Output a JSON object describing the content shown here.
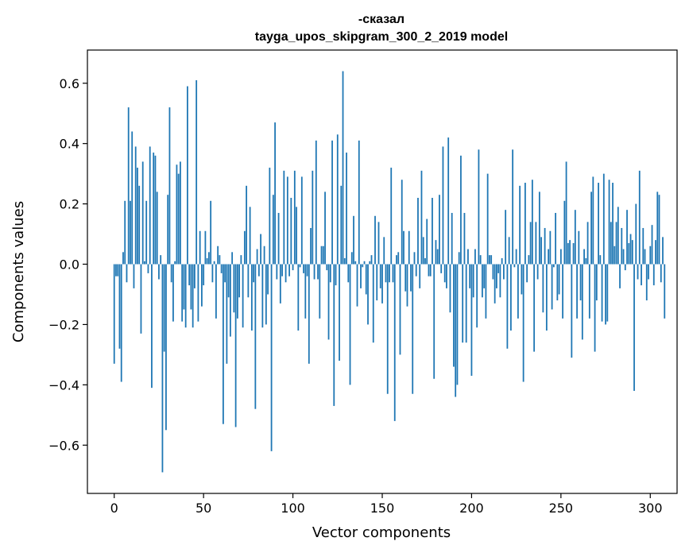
{
  "chart_data": {
    "type": "bar",
    "title": "-сказал",
    "subtitle": "tayga_upos_skipgram_300_2_2019 model",
    "xlabel": "Vector components",
    "ylabel": "Components values",
    "xlim": [
      -15,
      315
    ],
    "ylim": [
      -0.76,
      0.71
    ],
    "xticks": [
      0,
      50,
      100,
      150,
      200,
      250,
      300
    ],
    "yticks": [
      -0.6,
      -0.4,
      -0.2,
      0.0,
      0.2,
      0.4,
      0.6
    ],
    "ytick_labels": [
      "−0.6",
      "−0.4",
      "−0.2",
      "0.0",
      "0.2",
      "0.4",
      "0.6"
    ],
    "bar_color": "#1f77b4",
    "grid": false,
    "values": [
      -0.33,
      -0.04,
      -0.04,
      -0.28,
      -0.39,
      0.04,
      0.21,
      -0.06,
      0.52,
      0.21,
      0.44,
      -0.08,
      0.39,
      0.32,
      0.26,
      -0.23,
      0.34,
      0.01,
      0.21,
      -0.03,
      0.39,
      -0.41,
      0.37,
      0.36,
      0.24,
      -0.05,
      0.03,
      -0.69,
      -0.29,
      -0.55,
      0.23,
      0.52,
      -0.06,
      -0.19,
      0.01,
      0.33,
      0.3,
      0.34,
      -0.19,
      -0.15,
      -0.21,
      0.59,
      -0.07,
      -0.15,
      -0.21,
      -0.08,
      0.61,
      -0.19,
      0.11,
      -0.14,
      -0.07,
      0.11,
      0.02,
      0.04,
      0.21,
      -0.06,
      0.01,
      -0.18,
      0.06,
      0.03,
      -0.03,
      -0.53,
      -0.06,
      -0.33,
      -0.11,
      -0.24,
      0.04,
      -0.16,
      -0.54,
      -0.18,
      -0.11,
      0.03,
      -0.21,
      0.11,
      0.26,
      -0.11,
      0.19,
      -0.22,
      -0.06,
      -0.48,
      0.05,
      -0.04,
      0.1,
      -0.21,
      0.06,
      -0.2,
      -0.1,
      0.32,
      -0.62,
      0.23,
      0.47,
      -0.05,
      0.17,
      -0.13,
      -0.04,
      0.31,
      -0.06,
      0.29,
      -0.04,
      0.22,
      -0.02,
      0.31,
      0.19,
      -0.22,
      -0.01,
      0.29,
      -0.03,
      -0.18,
      -0.04,
      -0.33,
      0.12,
      0.31,
      -0.05,
      0.41,
      -0.05,
      -0.18,
      0.06,
      0.06,
      0.24,
      -0.02,
      -0.25,
      -0.06,
      0.41,
      -0.47,
      -0.07,
      0.43,
      -0.32,
      0.26,
      0.64,
      0.02,
      0.37,
      -0.06,
      -0.4,
      0.04,
      0.16,
      0.01,
      -0.14,
      0.41,
      -0.08,
      -0.01,
      0.01,
      -0.1,
      -0.2,
      0.01,
      0.03,
      -0.26,
      0.16,
      -0.12,
      0.14,
      -0.08,
      -0.13,
      0.09,
      -0.06,
      -0.43,
      -0.06,
      0.32,
      -0.06,
      -0.52,
      0.03,
      0.04,
      -0.3,
      0.28,
      0.11,
      -0.09,
      -0.14,
      0.11,
      -0.09,
      -0.43,
      0.04,
      -0.04,
      0.22,
      -0.08,
      0.31,
      0.09,
      0.02,
      0.15,
      -0.04,
      -0.04,
      0.22,
      -0.38,
      0.08,
      0.05,
      0.23,
      -0.03,
      0.39,
      -0.06,
      -0.08,
      0.42,
      -0.16,
      0.17,
      -0.34,
      -0.44,
      -0.4,
      0.04,
      0.36,
      -0.26,
      0.17,
      -0.26,
      0.05,
      -0.08,
      -0.37,
      -0.11,
      0.05,
      -0.21,
      0.38,
      0.03,
      -0.11,
      -0.08,
      -0.18,
      0.3,
      0.03,
      0.03,
      -0.05,
      -0.13,
      -0.08,
      -0.03,
      -0.11,
      0.02,
      -0.05,
      0.18,
      -0.28,
      0.09,
      -0.22,
      0.38,
      -0.01,
      0.05,
      -0.18,
      0.26,
      -0.1,
      -0.39,
      0.27,
      -0.06,
      0.03,
      0.14,
      0.28,
      -0.29,
      0.14,
      -0.05,
      0.24,
      0.09,
      -0.16,
      0.12,
      -0.22,
      0.05,
      0.11,
      -0.15,
      -0.01,
      0.17,
      -0.12,
      -0.1,
      0.05,
      -0.18,
      0.21,
      0.34,
      0.07,
      0.08,
      -0.31,
      0.07,
      0.18,
      -0.18,
      0.11,
      -0.12,
      -0.25,
      0.05,
      0.02,
      0.14,
      -0.18,
      0.24,
      0.29,
      -0.29,
      -0.12,
      0.27,
      0.03,
      -0.19,
      0.3,
      -0.2,
      -0.19,
      0.28,
      0.14,
      0.27,
      0.06,
      0.14,
      0.19,
      -0.08,
      0.12,
      0.05,
      -0.02,
      0.18,
      0.07,
      0.1,
      0.08,
      -0.42,
      0.2,
      -0.05,
      0.31,
      -0.07,
      0.12,
      0.05,
      -0.12,
      -0.05,
      0.06,
      0.13,
      -0.07,
      0.08,
      0.24,
      0.23,
      -0.06,
      0.09,
      -0.18
    ]
  }
}
